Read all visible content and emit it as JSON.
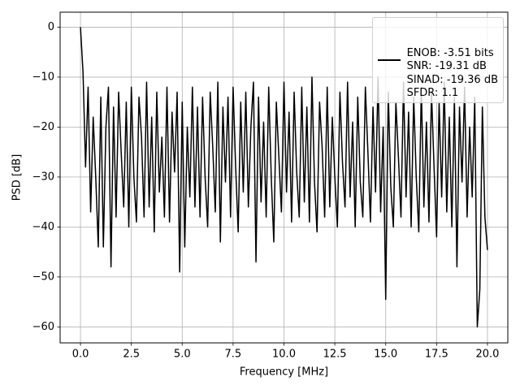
{
  "chart_data": {
    "type": "line",
    "xlabel": "Frequency [MHz]",
    "ylabel": "PSD [dB]",
    "x": [
      0,
      0.125,
      0.25,
      0.375,
      0.5,
      0.625,
      0.75,
      0.875,
      1,
      1.125,
      1.25,
      1.375,
      1.5,
      1.625,
      1.75,
      1.875,
      2,
      2.125,
      2.25,
      2.375,
      2.5,
      2.625,
      2.75,
      2.875,
      3,
      3.125,
      3.25,
      3.375,
      3.5,
      3.625,
      3.75,
      3.875,
      4,
      4.125,
      4.25,
      4.375,
      4.5,
      4.625,
      4.75,
      4.875,
      5,
      5.125,
      5.25,
      5.375,
      5.5,
      5.625,
      5.75,
      5.875,
      6,
      6.125,
      6.25,
      6.375,
      6.5,
      6.625,
      6.75,
      6.875,
      7,
      7.125,
      7.25,
      7.375,
      7.5,
      7.625,
      7.75,
      7.875,
      8,
      8.125,
      8.25,
      8.375,
      8.5,
      8.625,
      8.75,
      8.875,
      9,
      9.125,
      9.25,
      9.375,
      9.5,
      9.625,
      9.75,
      9.875,
      10,
      10.125,
      10.25,
      10.375,
      10.5,
      10.625,
      10.75,
      10.875,
      11,
      11.125,
      11.25,
      11.375,
      11.5,
      11.625,
      11.75,
      11.875,
      12,
      12.125,
      12.25,
      12.375,
      12.5,
      12.625,
      12.75,
      12.875,
      13,
      13.125,
      13.25,
      13.375,
      13.5,
      13.625,
      13.75,
      13.875,
      14,
      14.125,
      14.25,
      14.375,
      14.5,
      14.625,
      14.75,
      14.875,
      15,
      15.125,
      15.25,
      15.375,
      15.5,
      15.625,
      15.75,
      15.875,
      16,
      16.125,
      16.25,
      16.375,
      16.5,
      16.625,
      16.75,
      16.875,
      17,
      17.125,
      17.25,
      17.375,
      17.5,
      17.625,
      17.75,
      17.875,
      18,
      18.125,
      18.25,
      18.375,
      18.5,
      18.625,
      18.75,
      18.875,
      19,
      19.125,
      19.25,
      19.375,
      19.5,
      19.625,
      19.75,
      19.875,
      20
    ],
    "series": [
      {
        "name": "ENOB: -3.51 bits\nSNR: -19.31 dB\nSINAD: -19.36 dB\nSFDR: 1.1",
        "color": "#000000",
        "values": [
          0,
          -9,
          -28,
          -12,
          -37,
          -18,
          -30,
          -44,
          -14,
          -44,
          -20,
          -12,
          -48,
          -16,
          -38,
          -13,
          -25,
          -36,
          -15,
          -40,
          -12,
          -30,
          -39,
          -14,
          -22,
          -38,
          -11,
          -36,
          -18,
          -41,
          -13,
          -33,
          -22,
          -38,
          -12,
          -39,
          -17,
          -29,
          -13,
          -49,
          -15,
          -44,
          -20,
          -34,
          -12,
          -36,
          -16,
          -38,
          -14,
          -30,
          -40,
          -13,
          -24,
          -37,
          -11,
          -43,
          -16,
          -31,
          -14,
          -38,
          -12,
          -28,
          -41,
          -15,
          -33,
          -13,
          -36,
          -20,
          -11,
          -47,
          -14,
          -35,
          -19,
          -38,
          -12,
          -30,
          -43,
          -15,
          -26,
          -37,
          -11,
          -33,
          -17,
          -39,
          -13,
          -29,
          -38,
          -12,
          -35,
          -16,
          -39,
          -10,
          -31,
          -41,
          -15,
          -24,
          -38,
          -12,
          -36,
          -18,
          -30,
          -40,
          -13,
          -27,
          -36,
          -11,
          -34,
          -19,
          -40,
          -14,
          -31,
          -38,
          -12,
          -25,
          -39,
          -16,
          -33,
          -10,
          -37,
          -20,
          -54.5,
          -13,
          -32,
          -40,
          -15,
          -26,
          -38,
          -11,
          -34,
          -17,
          -40,
          -14,
          -30,
          -41,
          -12,
          -36,
          -19,
          -39,
          -13,
          -28,
          -42,
          -15,
          -34,
          -11,
          -37,
          -18,
          -40,
          -14,
          -48,
          -16,
          -31,
          -12,
          -38,
          -20,
          -34,
          -14,
          -60,
          -52.5,
          -16,
          -38,
          -44.6
        ]
      }
    ],
    "xlim": [
      -1.0,
      21.0
    ],
    "xticks": [
      {
        "value": 0,
        "label": "0.0"
      },
      {
        "value": 2.5,
        "label": "2.5"
      },
      {
        "value": 5,
        "label": "5.0"
      },
      {
        "value": 7.5,
        "label": "7.5"
      },
      {
        "value": 10,
        "label": "10.0"
      },
      {
        "value": 12.5,
        "label": "12.5"
      },
      {
        "value": 15,
        "label": "15.0"
      },
      {
        "value": 17.5,
        "label": "17.5"
      },
      {
        "value": 20,
        "label": "20.0"
      }
    ],
    "ylim": [
      -63.2,
      3.0
    ],
    "yticks": [
      0,
      {
        "value": -10,
        "label": "−10"
      },
      {
        "value": -20,
        "label": "−20"
      },
      {
        "value": -30,
        "label": "−30"
      },
      {
        "value": -40,
        "label": "−40"
      },
      {
        "value": -50,
        "label": "−50"
      },
      {
        "value": -60,
        "label": "−60"
      }
    ],
    "grid": true,
    "legend": "upper right"
  }
}
